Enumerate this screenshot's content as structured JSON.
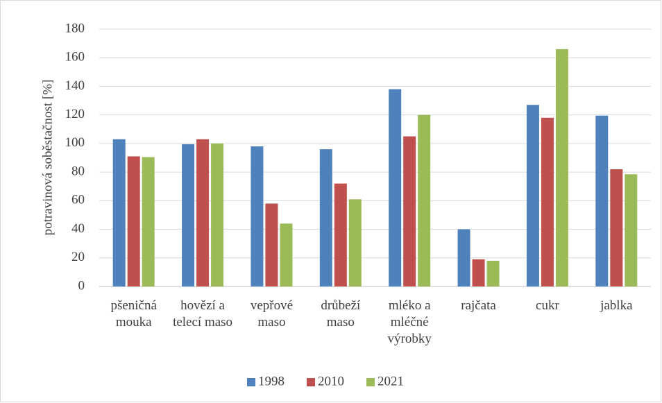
{
  "chart_data": {
    "type": "bar",
    "y_label": "potravinová soběstačnost [%]",
    "categories": [
      "pšeničná mouka",
      "hovězí a telecí maso",
      "vepřové maso",
      "drůbeží maso",
      "mléko a mléčné výrobky",
      "rajčata",
      "cukr",
      "jablka"
    ],
    "series": [
      {
        "name": "1998",
        "color": "#4f81bd",
        "values": [
          103,
          99.5,
          98,
          96,
          138,
          40,
          127,
          119.5
        ]
      },
      {
        "name": "2010",
        "color": "#c0504d",
        "values": [
          91,
          103,
          58,
          72,
          105,
          19,
          118,
          82
        ]
      },
      {
        "name": "2021",
        "color": "#9bbb59",
        "values": [
          90.5,
          100,
          44,
          61,
          120,
          18,
          166,
          78.5
        ]
      }
    ],
    "ylim": [
      0,
      180
    ],
    "yticks": [
      0,
      20,
      40,
      60,
      80,
      100,
      120,
      140,
      160,
      180
    ],
    "grid": true,
    "legend": "bottom"
  }
}
